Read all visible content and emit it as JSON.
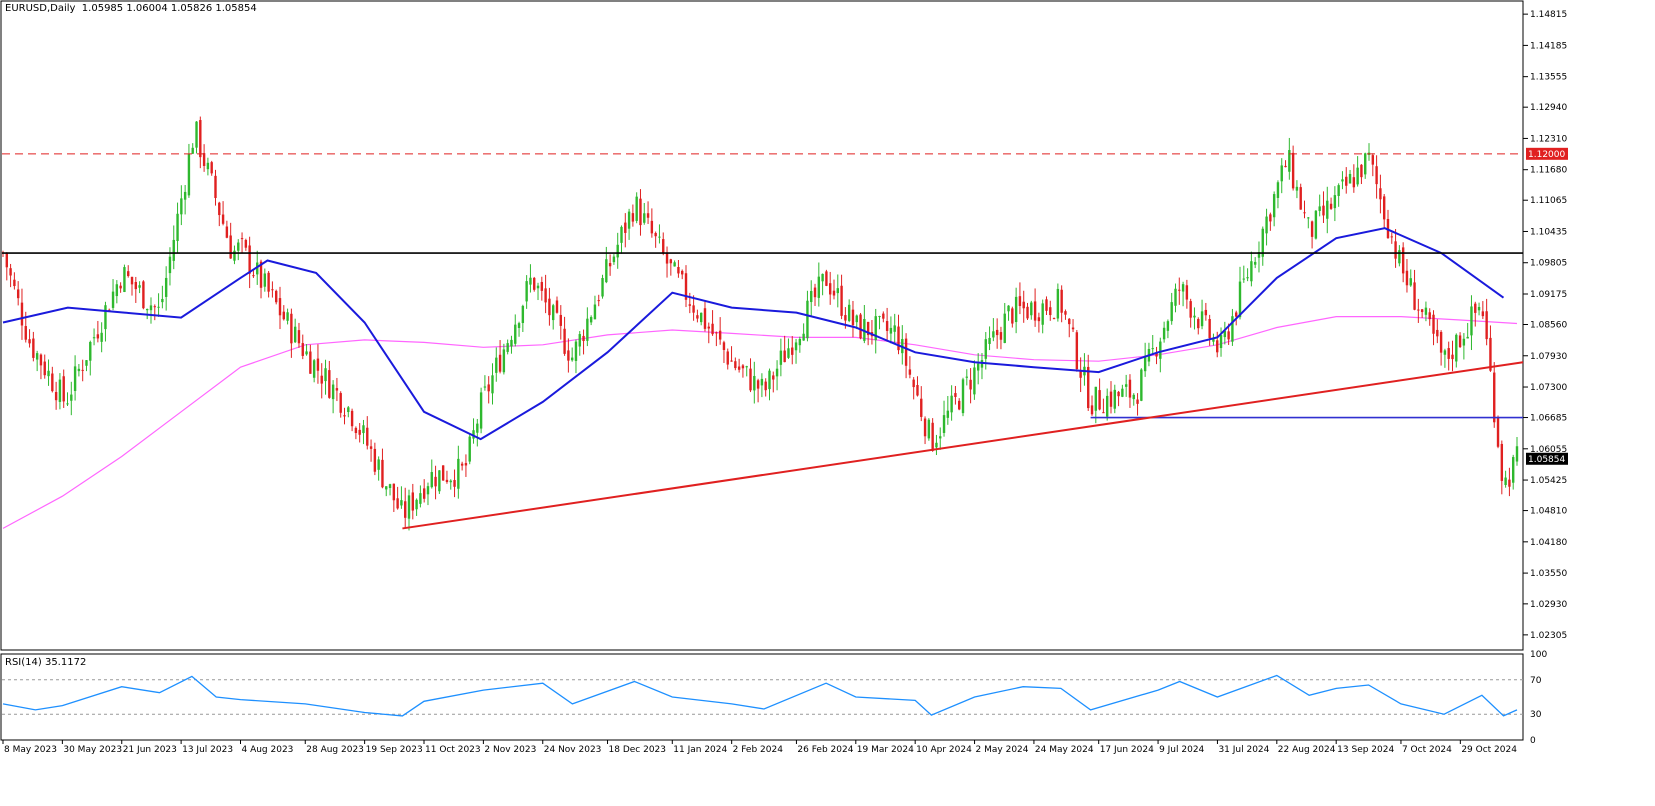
{
  "header": {
    "symbol_timeframe": "EURUSD,Daily",
    "ohlc": "1.05985 1.06004 1.05826 1.05854"
  },
  "rsi_header": "RSI(14) 35.1172",
  "chart_data": [
    {
      "type": "candlestick",
      "symbol": "EURUSD",
      "timeframe": "Daily",
      "ohlc_last": {
        "open": 1.05985,
        "high": 1.06004,
        "low": 1.05826,
        "close": 1.05854
      },
      "ylim": [
        1.02,
        1.151
      ],
      "y_ticks": [
        "1.14815",
        "1.14185",
        "1.13555",
        "1.12940",
        "1.12310",
        "1.11680",
        "1.11065",
        "1.10435",
        "1.09805",
        "1.09175",
        "1.08560",
        "1.07930",
        "1.07300",
        "1.06685",
        "1.06055",
        "1.05425",
        "1.04810",
        "1.04180",
        "1.03550",
        "1.02930",
        "1.02305"
      ],
      "x_ticks": [
        "8 May 2023",
        "30 May 2023",
        "21 Jun 2023",
        "13 Jul 2023",
        "4 Aug 2023",
        "28 Aug 2023",
        "19 Sep 2023",
        "11 Oct 2023",
        "2 Nov 2023",
        "24 Nov 2023",
        "18 Dec 2023",
        "11 Jan 2024",
        "2 Feb 2024",
        "26 Feb 2024",
        "19 Mar 2024",
        "10 Apr 2024",
        "2 May 2024",
        "24 May 2024",
        "17 Jun 2024",
        "9 Jul 2024",
        "31 Jul 2024",
        "22 Aug 2024",
        "13 Sep 2024",
        "7 Oct 2024",
        "29 Oct 2024"
      ],
      "bull_color": "#2eb82e",
      "bear_color": "#e02020",
      "price_path": [
        {
          "date": "8 May 2023",
          "close": 1.1
        },
        {
          "date": "18 May 2023",
          "close": 1.082
        },
        {
          "date": "31 May 2023",
          "close": 1.07
        },
        {
          "date": "21 Jun 2023",
          "close": 1.096
        },
        {
          "date": "5 Jul 2023",
          "close": 1.088
        },
        {
          "date": "18 Jul 2023",
          "close": 1.125
        },
        {
          "date": "1 Aug 2023",
          "close": 1.1
        },
        {
          "date": "4 Aug 2023",
          "close": 1.101
        },
        {
          "date": "28 Aug 2023",
          "close": 1.08
        },
        {
          "date": "14 Sep 2023",
          "close": 1.068
        },
        {
          "date": "3 Oct 2023",
          "close": 1.047
        },
        {
          "date": "13 Oct 2023",
          "close": 1.055
        },
        {
          "date": "26 Oct 2023",
          "close": 1.056
        },
        {
          "date": "1 Nov 2023",
          "close": 1.069
        },
        {
          "date": "20 Nov 2023",
          "close": 1.095
        },
        {
          "date": "5 Dec 2023",
          "close": 1.079
        },
        {
          "date": "28 Dec 2023",
          "close": 1.11
        },
        {
          "date": "11 Jan 2024",
          "close": 1.096
        },
        {
          "date": "2 Feb 2024",
          "close": 1.078
        },
        {
          "date": "14 Feb 2024",
          "close": 1.072
        },
        {
          "date": "8 Mar 2024",
          "close": 1.095
        },
        {
          "date": "19 Mar 2024",
          "close": 1.085
        },
        {
          "date": "3 Apr 2024",
          "close": 1.084
        },
        {
          "date": "16 Apr 2024",
          "close": 1.062
        },
        {
          "date": "2 May 2024",
          "close": 1.076
        },
        {
          "date": "15 May 2024",
          "close": 1.088
        },
        {
          "date": "3 Jun 2024",
          "close": 1.09
        },
        {
          "date": "14 Jun 2024",
          "close": 1.07
        },
        {
          "date": "1 Jul 2024",
          "close": 1.072
        },
        {
          "date": "17 Jul 2024",
          "close": 1.093
        },
        {
          "date": "1 Aug 2024",
          "close": 1.08
        },
        {
          "date": "26 Aug 2024",
          "close": 1.119
        },
        {
          "date": "3 Sep 2024",
          "close": 1.104
        },
        {
          "date": "25 Sep 2024",
          "close": 1.119
        },
        {
          "date": "7 Oct 2024",
          "close": 1.097
        },
        {
          "date": "23 Oct 2024",
          "close": 1.078
        },
        {
          "date": "6 Nov 2024",
          "close": 1.09
        },
        {
          "date": "14 Nov 2024",
          "close": 1.053
        },
        {
          "date": "19 Nov 2024",
          "close": 1.0585
        }
      ],
      "ma_fast": [
        {
          "date": "8 May 2023",
          "value": 1.086
        },
        {
          "date": "1 Jun 2023",
          "value": 1.089
        },
        {
          "date": "22 Jun 2023",
          "value": 1.088
        },
        {
          "date": "13 Jul 2023",
          "value": 1.087
        },
        {
          "date": "4 Aug 2023",
          "value": 1.095
        },
        {
          "date": "14 Aug 2023",
          "value": 1.0985
        },
        {
          "date": "1 Sep 2023",
          "value": 1.096
        },
        {
          "date": "19 Sep 2023",
          "value": 1.086
        },
        {
          "date": "11 Oct 2023",
          "value": 1.068
        },
        {
          "date": "1 Nov 2023",
          "value": 1.0625
        },
        {
          "date": "24 Nov 2023",
          "value": 1.07
        },
        {
          "date": "18 Dec 2023",
          "value": 1.08
        },
        {
          "date": "11 Jan 2024",
          "value": 1.092
        },
        {
          "date": "2 Feb 2024",
          "value": 1.089
        },
        {
          "date": "26 Feb 2024",
          "value": 1.088
        },
        {
          "date": "19 Mar 2024",
          "value": 1.085
        },
        {
          "date": "10 Apr 2024",
          "value": 1.08
        },
        {
          "date": "2 May 2024",
          "value": 1.078
        },
        {
          "date": "24 May 2024",
          "value": 1.077
        },
        {
          "date": "17 Jun 2024",
          "value": 1.076
        },
        {
          "date": "9 Jul 2024",
          "value": 1.08
        },
        {
          "date": "31 Jul 2024",
          "value": 1.083
        },
        {
          "date": "22 Aug 2024",
          "value": 1.095
        },
        {
          "date": "13 Sep 2024",
          "value": 1.103
        },
        {
          "date": "1 Oct 2024",
          "value": 1.105
        },
        {
          "date": "22 Oct 2024",
          "value": 1.1
        },
        {
          "date": "14 Nov 2024",
          "value": 1.091
        }
      ],
      "ma_slow": [
        {
          "date": "8 May 2023",
          "value": 1.0445
        },
        {
          "date": "30 May 2023",
          "value": 1.051
        },
        {
          "date": "21 Jun 2023",
          "value": 1.059
        },
        {
          "date": "13 Jul 2023",
          "value": 1.068
        },
        {
          "date": "4 Aug 2023",
          "value": 1.077
        },
        {
          "date": "28 Aug 2023",
          "value": 1.0815
        },
        {
          "date": "19 Sep 2023",
          "value": 1.0825
        },
        {
          "date": "11 Oct 2023",
          "value": 1.082
        },
        {
          "date": "2 Nov 2023",
          "value": 1.081
        },
        {
          "date": "24 Nov 2023",
          "value": 1.0815
        },
        {
          "date": "18 Dec 2023",
          "value": 1.0835
        },
        {
          "date": "11 Jan 2024",
          "value": 1.0845
        },
        {
          "date": "2 Feb 2024",
          "value": 1.0838
        },
        {
          "date": "26 Feb 2024",
          "value": 1.083
        },
        {
          "date": "19 Mar 2024",
          "value": 1.083
        },
        {
          "date": "10 Apr 2024",
          "value": 1.0815
        },
        {
          "date": "2 May 2024",
          "value": 1.0795
        },
        {
          "date": "24 May 2024",
          "value": 1.0785
        },
        {
          "date": "17 Jun 2024",
          "value": 1.0782
        },
        {
          "date": "9 Jul 2024",
          "value": 1.0795
        },
        {
          "date": "31 Jul 2024",
          "value": 1.0815
        },
        {
          "date": "22 Aug 2024",
          "value": 1.085
        },
        {
          "date": "13 Sep 2024",
          "value": 1.0872
        },
        {
          "date": "7 Oct 2024",
          "value": 1.0872
        },
        {
          "date": "29 Oct 2024",
          "value": 1.0865
        },
        {
          "date": "19 Nov 2024",
          "value": 1.0858
        }
      ],
      "lines": [
        {
          "kind": "horizontal",
          "style": "dashed",
          "color": "#e02020",
          "value": 1.12,
          "label": "1.12000"
        },
        {
          "kind": "horizontal",
          "style": "solid",
          "color": "#000000",
          "value": 1.1
        },
        {
          "kind": "horizontal",
          "style": "solid",
          "color": "#3030d0",
          "from": "14 Jun 2024",
          "value": 1.06685
        },
        {
          "kind": "trend",
          "color": "#e02020",
          "from": {
            "date": "3 Oct 2023",
            "value": 1.0445
          },
          "to": {
            "date": "19 Nov 2024",
            "value": 1.078
          }
        }
      ],
      "current_price_label": "1.05854"
    },
    {
      "type": "line",
      "name": "RSI(14)",
      "current": 35.1172,
      "ylim": [
        0,
        100
      ],
      "y_ticks": [
        "100",
        "70",
        "30",
        "0"
      ],
      "levels": [
        70,
        30
      ],
      "color": "#1e90ff",
      "points": [
        {
          "date": "8 May 2023",
          "value": 42
        },
        {
          "date": "20 May 2023",
          "value": 35
        },
        {
          "date": "30 May 2023",
          "value": 40
        },
        {
          "date": "21 Jun 2023",
          "value": 62
        },
        {
          "date": "5 Jul 2023",
          "value": 55
        },
        {
          "date": "17 Jul 2023",
          "value": 74
        },
        {
          "date": "26 Jul 2023",
          "value": 50
        },
        {
          "date": "4 Aug 2023",
          "value": 47
        },
        {
          "date": "28 Aug 2023",
          "value": 42
        },
        {
          "date": "19 Sep 2023",
          "value": 32
        },
        {
          "date": "3 Oct 2023",
          "value": 28
        },
        {
          "date": "11 Oct 2023",
          "value": 45
        },
        {
          "date": "2 Nov 2023",
          "value": 58
        },
        {
          "date": "24 Nov 2023",
          "value": 66
        },
        {
          "date": "5 Dec 2023",
          "value": 42
        },
        {
          "date": "28 Dec 2023",
          "value": 68
        },
        {
          "date": "11 Jan 2024",
          "value": 50
        },
        {
          "date": "2 Feb 2024",
          "value": 42
        },
        {
          "date": "14 Feb 2024",
          "value": 36
        },
        {
          "date": "8 Mar 2024",
          "value": 66
        },
        {
          "date": "19 Mar 2024",
          "value": 50
        },
        {
          "date": "10 Apr 2024",
          "value": 46
        },
        {
          "date": "16 Apr 2024",
          "value": 29
        },
        {
          "date": "2 May 2024",
          "value": 50
        },
        {
          "date": "20 May 2024",
          "value": 62
        },
        {
          "date": "3 Jun 2024",
          "value": 60
        },
        {
          "date": "14 Jun 2024",
          "value": 35
        },
        {
          "date": "9 Jul 2024",
          "value": 58
        },
        {
          "date": "17 Jul 2024",
          "value": 68
        },
        {
          "date": "31 Jul 2024",
          "value": 50
        },
        {
          "date": "22 Aug 2024",
          "value": 75
        },
        {
          "date": "3 Sep 2024",
          "value": 52
        },
        {
          "date": "13 Sep 2024",
          "value": 60
        },
        {
          "date": "25 Sep 2024",
          "value": 64
        },
        {
          "date": "7 Oct 2024",
          "value": 42
        },
        {
          "date": "23 Oct 2024",
          "value": 30
        },
        {
          "date": "6 Nov 2024",
          "value": 52
        },
        {
          "date": "14 Nov 2024",
          "value": 28
        },
        {
          "date": "19 Nov 2024",
          "value": 35
        }
      ]
    }
  ]
}
